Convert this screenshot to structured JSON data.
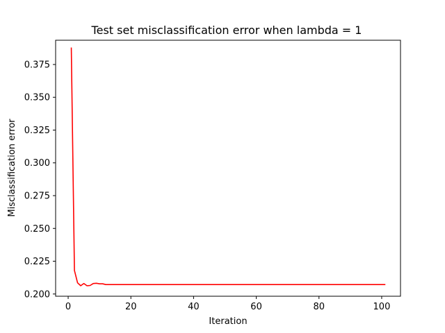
{
  "chart_data": {
    "type": "line",
    "title": "Test set misclassification error when lambda = 1",
    "xlabel": "Iteration",
    "ylabel": "Misclassification error",
    "xlim": [
      -4,
      106
    ],
    "ylim": [
      0.1983,
      0.3935
    ],
    "xticks": [
      0,
      20,
      40,
      60,
      80,
      100
    ],
    "yticks": [
      0.2,
      0.225,
      0.25,
      0.275,
      0.3,
      0.325,
      0.35,
      0.375
    ],
    "xtick_labels": [
      "0",
      "20",
      "40",
      "60",
      "80",
      "100"
    ],
    "ytick_labels": [
      "0.200",
      "0.225",
      "0.250",
      "0.275",
      "0.300",
      "0.325",
      "0.350",
      "0.375"
    ],
    "grid": false,
    "series": [
      {
        "name": "misclassification error",
        "color": "#ff0000",
        "x": [
          1,
          2,
          3,
          4,
          5,
          6,
          7,
          8,
          9,
          10,
          11,
          12,
          13,
          14,
          15,
          20,
          30,
          40,
          50,
          60,
          70,
          80,
          90,
          101
        ],
        "y": [
          0.3875,
          0.218,
          0.2085,
          0.2063,
          0.208,
          0.2063,
          0.2065,
          0.208,
          0.2082,
          0.2078,
          0.2078,
          0.2072,
          0.2072,
          0.2072,
          0.2072,
          0.2072,
          0.2072,
          0.2072,
          0.2072,
          0.2072,
          0.2072,
          0.2072,
          0.2072,
          0.2072
        ]
      }
    ]
  }
}
